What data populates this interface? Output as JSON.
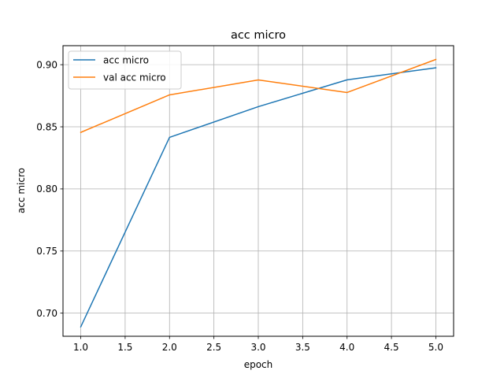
{
  "chart_data": {
    "type": "line",
    "title": "acc micro",
    "xlabel": "epoch",
    "ylabel": "acc micro",
    "x": [
      1.0,
      2.0,
      3.0,
      4.0,
      5.0
    ],
    "series": [
      {
        "name": "acc micro",
        "color": "#1f77b4",
        "values": [
          0.689,
          0.8415,
          0.8662,
          0.8878,
          0.8975
        ]
      },
      {
        "name": "val acc micro",
        "color": "#ff7f0e",
        "values": [
          0.8455,
          0.8757,
          0.8877,
          0.8776,
          0.9042
        ]
      }
    ],
    "xlim": [
      0.8,
      5.2
    ],
    "ylim": [
      0.6814,
      0.9153
    ],
    "xticks": [
      1.0,
      1.5,
      2.0,
      2.5,
      3.0,
      3.5,
      4.0,
      4.5,
      5.0
    ],
    "xtick_labels": [
      "1.0",
      "1.5",
      "2.0",
      "2.5",
      "3.0",
      "3.5",
      "4.0",
      "4.5",
      "5.0"
    ],
    "yticks": [
      0.7,
      0.75,
      0.8,
      0.85,
      0.9
    ],
    "ytick_labels": [
      "0.70",
      "0.75",
      "0.80",
      "0.85",
      "0.90"
    ],
    "grid": true,
    "legend_position": "top-left"
  }
}
